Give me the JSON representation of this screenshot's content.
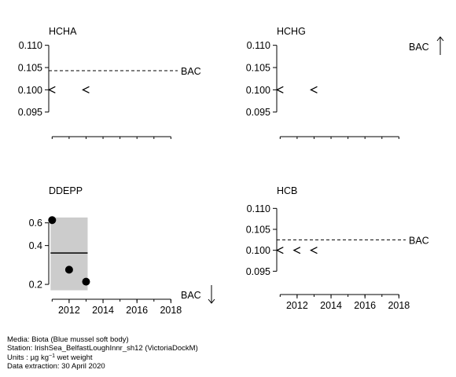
{
  "chart_data": [
    {
      "id": "hcha",
      "type": "scatter",
      "title": "HCHA",
      "ylim": [
        0.09,
        0.111
      ],
      "yticks": [
        "0.110",
        "0.105",
        "0.100",
        "0.095"
      ],
      "ytick_values": [
        0.11,
        0.105,
        0.1,
        0.095
      ],
      "xlim": [
        2010.8,
        2018.4
      ],
      "xticks": [],
      "x_minor_ticks": [
        2011,
        2012,
        2013,
        2014,
        2015,
        2016,
        2017,
        2018
      ],
      "less_than": [
        {
          "x": 2011,
          "y": 0.1
        },
        {
          "x": 2013,
          "y": 0.1
        }
      ],
      "points": [],
      "reference": {
        "label": "BAC",
        "value": 0.1043,
        "style": "dashed",
        "arrow": null
      }
    },
    {
      "id": "hchg",
      "type": "scatter",
      "title": "HCHG",
      "ylim": [
        0.09,
        0.111
      ],
      "yticks": [
        "0.110",
        "0.105",
        "0.100",
        "0.095"
      ],
      "ytick_values": [
        0.11,
        0.105,
        0.1,
        0.095
      ],
      "xlim": [
        2010.8,
        2018.4
      ],
      "xticks": [],
      "x_minor_ticks": [
        2011,
        2012,
        2013,
        2014,
        2015,
        2016,
        2017,
        2018
      ],
      "less_than": [
        {
          "x": 2011,
          "y": 0.1
        },
        {
          "x": 2013,
          "y": 0.1
        }
      ],
      "points": [],
      "reference": {
        "label": "BAC",
        "value": null,
        "style": "none",
        "arrow": "up"
      }
    },
    {
      "id": "ddepp",
      "type": "scatter",
      "title": "DDEPP",
      "log_scale": true,
      "ylim": [
        0.16,
        0.78
      ],
      "yticks": [
        "0.6",
        "0.4",
        "0.2"
      ],
      "ytick_values": [
        0.6,
        0.4,
        0.2
      ],
      "xlim": [
        2010.8,
        2018.4
      ],
      "xticks": [
        "2012",
        "2014",
        "2016",
        "2018"
      ],
      "xtick_values": [
        2012,
        2014,
        2016,
        2018
      ],
      "x_minor_ticks": [
        2011,
        2012,
        2013,
        2014,
        2015,
        2016,
        2017,
        2018
      ],
      "less_than": [],
      "points": [
        {
          "x": 2011,
          "y": 0.63
        },
        {
          "x": 2012,
          "y": 0.26
        },
        {
          "x": 2013,
          "y": 0.21
        }
      ],
      "band": {
        "x0": 2011,
        "x1": 2013,
        "y0": 0.18,
        "y1": 0.66
      },
      "trend": {
        "x0": 2011,
        "x1": 2013,
        "y": 0.35
      },
      "reference": {
        "label": "BAC",
        "value": null,
        "style": "none",
        "arrow": "down"
      }
    },
    {
      "id": "hcb",
      "type": "scatter",
      "title": "HCB",
      "ylim": [
        0.09,
        0.111
      ],
      "yticks": [
        "0.110",
        "0.105",
        "0.100",
        "0.095"
      ],
      "ytick_values": [
        0.11,
        0.105,
        0.1,
        0.095
      ],
      "xlim": [
        2010.8,
        2018.4
      ],
      "xticks": [
        "2012",
        "2014",
        "2016",
        "2018"
      ],
      "xtick_values": [
        2012,
        2014,
        2016,
        2018
      ],
      "x_minor_ticks": [
        2011,
        2012,
        2013,
        2014,
        2015,
        2016,
        2017,
        2018
      ],
      "less_than": [
        {
          "x": 2011,
          "y": 0.1
        },
        {
          "x": 2012,
          "y": 0.1
        },
        {
          "x": 2013,
          "y": 0.1
        }
      ],
      "points": [],
      "reference": {
        "label": "BAC",
        "value": 0.1025,
        "style": "dashed",
        "arrow": null
      }
    }
  ],
  "footer": {
    "media": "Media: Biota (Blue mussel soft body)",
    "station": "Station: IrishSea_BelfastLoughInnr_sh12 (VictoriaDockM)",
    "units_prefix": "Units : ",
    "units_mu": "µg kg",
    "units_exp": "−1",
    "units_suffix": " wet weight",
    "extraction": "Data extraction: 30 April 2020"
  }
}
